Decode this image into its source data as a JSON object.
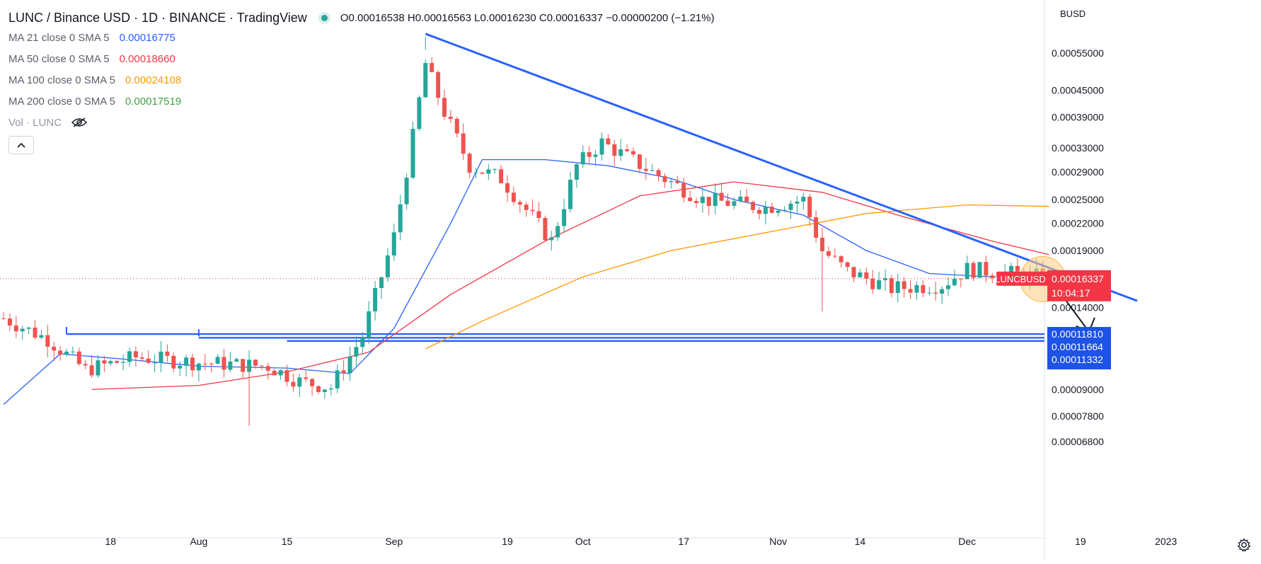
{
  "header": {
    "title": "LUNC / Binance USD · 1D · BINANCE · TradingView",
    "ohlc": "O0.00016538  H0.00016563  L0.00016230  C0.00016337  −0.00000200 (−1.21%)"
  },
  "indicators": [
    {
      "label": "MA 21 close 0 SMA 5",
      "value": "0.00016775",
      "color": "#2962ff"
    },
    {
      "label": "MA 50 close 0 SMA 5",
      "value": "0.00018660",
      "color": "#f23645"
    },
    {
      "label": "MA 100 close 0 SMA 5",
      "value": "0.00024108",
      "color": "#ff9800"
    },
    {
      "label": "MA 200 close 0 SMA 5",
      "value": "0.00017519",
      "color": "#43a047"
    }
  ],
  "volume": {
    "label": "Vol · LUNC"
  },
  "price_axis": {
    "currency": "BUSD",
    "ticks": [
      "0.00055000",
      "0.00045000",
      "0.00039000",
      "0.00033000",
      "0.00029000",
      "0.00025000",
      "0.00022000",
      "0.00019000",
      "0.00014000",
      "0.00009000",
      "0.00007800",
      "0.00006800"
    ],
    "tick_values": [
      0.00055,
      0.00045,
      0.00039,
      0.00033,
      0.00029,
      0.00025,
      0.00022,
      0.00019,
      0.00014,
      9e-05,
      7.8e-05,
      6.8e-05
    ],
    "symbol_badge": "LUNCBUSD",
    "price_badge": "0.00016337",
    "countdown": "10:04:17",
    "level_badges": [
      "0.00011810",
      "0.00011664",
      "0.00011332"
    ]
  },
  "time_axis": {
    "labels": [
      "18",
      "Aug",
      "15",
      "Sep",
      "19",
      "Oct",
      "17",
      "Nov",
      "14",
      "Dec",
      "19",
      "2023"
    ]
  },
  "colors": {
    "up": "#26a69a",
    "down": "#ef5350",
    "trend": "#2962ff",
    "ma21": "#2962ff",
    "ma50": "#f23645",
    "ma100": "#ff9800",
    "highlight": "#ffcc80",
    "price_badge": "#f23645",
    "level_badge": "#1e53e5"
  },
  "chart_data": {
    "type": "candlestick",
    "scale": "log",
    "ylim": [
      6.2e-05,
      0.00065
    ],
    "last_price": 0.00016337,
    "support_levels": [
      0.0001181,
      0.00011664,
      0.00011332
    ],
    "moving_averages": [
      {
        "name": "MA 21",
        "points": [
          [
            "Jul 1",
            8.3e-05
          ],
          [
            "Jul 10",
            0.000109
          ],
          [
            "Jul 20",
            0.000106
          ],
          [
            "Aug 1",
            0.000102
          ],
          [
            "Aug 15",
            0.000101
          ],
          [
            "Aug 25",
            9.8e-05
          ],
          [
            "Sep 1",
            0.000125
          ],
          [
            "Sep 10",
            0.00022
          ],
          [
            "Sep 15",
            0.00031
          ],
          [
            "Sep 25",
            0.00031
          ],
          [
            "Oct 5",
            0.0003
          ],
          [
            "Oct 15",
            0.00028
          ],
          [
            "Oct 25",
            0.00025
          ],
          [
            "Nov 5",
            0.00023
          ],
          [
            "Nov 15",
            0.00019
          ],
          [
            "Nov 25",
            0.000168
          ],
          [
            "Dec 5",
            0.000165
          ],
          [
            "Dec 13",
            0.000166
          ]
        ]
      },
      {
        "name": "MA 50",
        "points": [
          [
            "Jul 15",
            9e-05
          ],
          [
            "Aug 1",
            9.2e-05
          ],
          [
            "Aug 15",
            9.9e-05
          ],
          [
            "Aug 28",
            0.00011
          ],
          [
            "Sep 10",
            0.00015
          ],
          [
            "Sep 25",
            0.0002
          ],
          [
            "Oct 10",
            0.000255
          ],
          [
            "Oct 25",
            0.000275
          ],
          [
            "Nov 8",
            0.00026
          ],
          [
            "Nov 20",
            0.00023
          ],
          [
            "Dec 5",
            0.0002
          ],
          [
            "Dec 14",
            0.000186
          ]
        ]
      },
      {
        "name": "MA 100",
        "points": [
          [
            "Sep 6",
            0.000112
          ],
          [
            "Sep 15",
            0.00013
          ],
          [
            "Oct 1",
            0.000165
          ],
          [
            "Oct 15",
            0.00019
          ],
          [
            "Nov 1",
            0.000212
          ],
          [
            "Nov 15",
            0.000232
          ],
          [
            "Dec 1",
            0.000243
          ],
          [
            "Dec 14",
            0.000241
          ]
        ]
      }
    ],
    "trendline": [
      [
        "Sep 6",
        0.00061
      ],
      [
        "Dec 28",
        0.000145
      ]
    ],
    "projection_arrow": [
      [
        "Dec 15",
        0.000163
      ],
      [
        "Dec 19",
        0.00012
      ]
    ],
    "candles_ohlc_approx": [
      [
        "Jul 14",
        0.000128,
        0.000131,
        0.000118,
        0.00012
      ],
      [
        "Jul 22",
        0.00011,
        0.000113,
        9.8e-05,
        0.0001
      ],
      [
        "Aug 1",
        0.000106,
        0.000111,
        0.000103,
        0.000108
      ],
      [
        "Aug 12",
        0.000104,
        0.000108,
        9.9e-05,
        0.000102
      ],
      [
        "Aug 20",
        0.0001,
        0.000104,
        9e-05,
        9.2e-05
      ],
      [
        "Aug 27",
        0.000112,
        0.000135,
        0.00011,
        0.00013
      ],
      [
        "Sep 1",
        0.00019,
        0.000215,
        0.00018,
        0.00021
      ],
      [
        "Sep 6",
        0.00042,
        0.00061,
        0.0004,
        0.00055
      ],
      [
        "Sep 10",
        0.00042,
        0.0005,
        0.00035,
        0.00036
      ],
      [
        "Sep 25",
        0.00025,
        0.00029,
        0.00019,
        0.0002
      ],
      [
        "Oct 1",
        0.00031,
        0.00037,
        0.0003,
        0.00034
      ],
      [
        "Oct 15",
        0.0003,
        0.00032,
        0.00027,
        0.00028
      ],
      [
        "Oct 25",
        0.00024,
        0.00026,
        0.00022,
        0.00023
      ],
      [
        "Nov 5",
        0.00024,
        0.00027,
        0.00022,
        0.00025
      ],
      [
        "Nov 8",
        0.00023,
        0.00024,
        0.00014,
        0.00019
      ],
      [
        "Nov 20",
        0.00016,
        0.00018,
        0.00015,
        0.00016
      ],
      [
        "Dec 1",
        0.000165,
        0.00019,
        0.00016,
        0.000172
      ],
      [
        "Dec 14",
        0.000165,
        0.000166,
        0.000162,
        0.00016337
      ]
    ]
  }
}
